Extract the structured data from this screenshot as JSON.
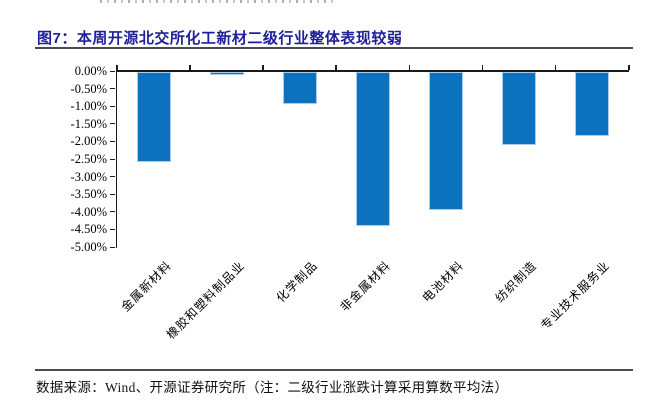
{
  "page": {
    "figure_title": "图7：本周开源北交所化工新材二级行业整体表现较弱",
    "source_note": "数据来源：Wind、开源证券研究所（注：二级行业涨跌计算采用算数平均法）"
  },
  "colors": {
    "title_text": "#1F1F9C",
    "rule": "#4A4A4A",
    "axis": "#1A1A1A",
    "bar_fill": "#0C72BE",
    "bar_border": "#A9CDEB"
  },
  "chart_data": {
    "type": "bar",
    "title": "本周开源北交所化工新材二级行业整体表现较弱",
    "categories": [
      "金属新材料",
      "橡胶和塑料制品业",
      "化学制品",
      "非金属材料",
      "电池材料",
      "纺织制造",
      "专业技术服务业"
    ],
    "values": [
      -2.55,
      -0.08,
      -0.9,
      -4.37,
      -3.93,
      -2.08,
      -1.82
    ],
    "unit": "%",
    "xlabel": "",
    "ylabel": "",
    "ylim": [
      -5,
      0
    ],
    "y_ticks": [
      "0.00%",
      "-0.50%",
      "-1.00%",
      "-1.50%",
      "-2.00%",
      "-2.50%",
      "-3.00%",
      "-3.50%",
      "-4.00%",
      "-4.50%",
      "-5.00%"
    ],
    "grid": false,
    "legend": false,
    "bars_descend_from_zero_axis": true
  }
}
